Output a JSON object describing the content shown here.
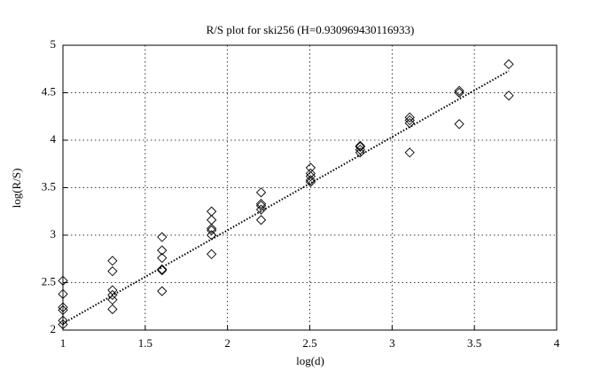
{
  "chart_data": {
    "type": "scatter",
    "title": "R/S plot for ski256 (H=0.930969430116933)",
    "xlabel": "log(d)",
    "ylabel": "log(R/S)",
    "xlim": [
      1,
      4
    ],
    "ylim": [
      2,
      5
    ],
    "xticks": [
      1,
      1.5,
      2,
      2.5,
      3,
      3.5,
      4
    ],
    "yticks": [
      2,
      2.5,
      3,
      3.5,
      4,
      4.5,
      5
    ],
    "grid": true,
    "series": [
      {
        "color": "#000000",
        "marker": "diamond",
        "x": [
          1,
          1,
          1,
          1,
          1,
          1,
          1.301,
          1.301,
          1.301,
          1.301,
          1.301,
          1.301,
          1.602,
          1.602,
          1.602,
          1.602,
          1.602,
          1.602,
          1.903,
          1.903,
          1.903,
          1.903,
          1.903,
          1.903,
          2.204,
          2.204,
          2.204,
          2.204,
          2.204,
          2.505,
          2.505,
          2.505,
          2.505,
          2.505,
          2.806,
          2.806,
          2.806,
          2.806,
          3.107,
          3.107,
          3.107,
          3.107,
          3.408,
          3.408,
          3.408,
          3.709,
          3.709
        ],
        "values": [
          2.52,
          2.38,
          2.24,
          2.21,
          2.1,
          2.06,
          2.73,
          2.62,
          2.42,
          2.37,
          2.32,
          2.22,
          2.98,
          2.84,
          2.76,
          2.64,
          2.63,
          2.41,
          3.25,
          3.16,
          3.07,
          3.05,
          3.0,
          2.8,
          3.45,
          3.33,
          3.31,
          3.27,
          3.16,
          3.71,
          3.65,
          3.62,
          3.58,
          3.56,
          3.94,
          3.93,
          3.9,
          3.87,
          4.24,
          4.21,
          4.18,
          3.87,
          4.52,
          4.5,
          4.17,
          4.8,
          4.47
        ]
      },
      {
        "color": "#000000",
        "style": "dotted",
        "x": [
          1,
          3.709
        ],
        "values": [
          2.07,
          4.73
        ]
      }
    ]
  }
}
